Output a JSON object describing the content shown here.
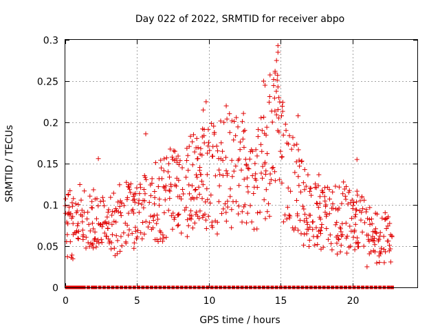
{
  "chart_data": {
    "type": "scatter",
    "title": "Day 022 of 2022, SRMTID for receiver abpo",
    "xlabel": "GPS time / hours",
    "ylabel": "SRMTID / TECUs",
    "xlim": [
      0,
      24.5
    ],
    "ylim": [
      0,
      0.3
    ],
    "x_ticks": [
      0,
      5,
      10,
      15,
      20
    ],
    "x_tick_labels": [
      "0",
      "5",
      "10",
      "15",
      "20"
    ],
    "y_ticks": [
      0,
      0.05,
      0.1,
      0.15,
      0.2,
      0.25,
      0.3
    ],
    "y_tick_labels": [
      "0",
      "0.05",
      "0.1",
      "0.15",
      "0.2",
      "0.25",
      "0.3"
    ],
    "grid": true,
    "marker": "plus",
    "color": "#e00000",
    "time_range": [
      0.0,
      22.75
    ],
    "trend": [
      {
        "x": 0.0,
        "y": 0.075
      },
      {
        "x": 1.0,
        "y": 0.08
      },
      {
        "x": 2.0,
        "y": 0.085
      },
      {
        "x": 3.0,
        "y": 0.075
      },
      {
        "x": 4.0,
        "y": 0.085
      },
      {
        "x": 5.0,
        "y": 0.09
      },
      {
        "x": 6.0,
        "y": 0.1
      },
      {
        "x": 7.0,
        "y": 0.11
      },
      {
        "x": 8.0,
        "y": 0.12
      },
      {
        "x": 9.0,
        "y": 0.125
      },
      {
        "x": 10.0,
        "y": 0.13
      },
      {
        "x": 11.0,
        "y": 0.14
      },
      {
        "x": 12.0,
        "y": 0.145
      },
      {
        "x": 13.0,
        "y": 0.13
      },
      {
        "x": 14.0,
        "y": 0.15
      },
      {
        "x": 14.5,
        "y": 0.2
      },
      {
        "x": 15.0,
        "y": 0.16
      },
      {
        "x": 16.0,
        "y": 0.12
      },
      {
        "x": 17.0,
        "y": 0.095
      },
      {
        "x": 18.0,
        "y": 0.085
      },
      {
        "x": 19.0,
        "y": 0.08
      },
      {
        "x": 20.0,
        "y": 0.085
      },
      {
        "x": 21.0,
        "y": 0.07
      },
      {
        "x": 22.0,
        "y": 0.055
      },
      {
        "x": 22.75,
        "y": 0.06
      }
    ],
    "highlights": [
      {
        "x": 14.8,
        "y": 0.293
      },
      {
        "x": 14.8,
        "y": 0.285
      },
      {
        "x": 14.7,
        "y": 0.275
      },
      {
        "x": 14.6,
        "y": 0.262
      },
      {
        "x": 14.5,
        "y": 0.252
      },
      {
        "x": 13.8,
        "y": 0.25
      },
      {
        "x": 13.9,
        "y": 0.245
      },
      {
        "x": 14.8,
        "y": 0.243
      },
      {
        "x": 9.8,
        "y": 0.225
      },
      {
        "x": 9.6,
        "y": 0.215
      },
      {
        "x": 11.2,
        "y": 0.22
      },
      {
        "x": 16.2,
        "y": 0.208
      },
      {
        "x": 5.6,
        "y": 0.186
      },
      {
        "x": 20.3,
        "y": 0.155
      },
      {
        "x": 2.3,
        "y": 0.156
      },
      {
        "x": 0.2,
        "y": 0.112
      },
      {
        "x": 21.0,
        "y": 0.025
      },
      {
        "x": 22.2,
        "y": 0.03
      }
    ],
    "zero_points": [
      0.1,
      0.3,
      0.5,
      0.7,
      0.9,
      1.1,
      1.3,
      1.6,
      1.9,
      2.1,
      2.4,
      2.7,
      3.0,
      3.3,
      3.6,
      3.9,
      4.2,
      4.5,
      4.8,
      5.1,
      5.4,
      5.7,
      6.0,
      6.3,
      6.6,
      6.9,
      7.2,
      7.5,
      7.8,
      8.1,
      8.4,
      8.7,
      9.0,
      9.3,
      9.6,
      9.9,
      10.2,
      10.5,
      10.8,
      11.1,
      11.4,
      11.7,
      12.0,
      12.3,
      12.6,
      12.9,
      13.2,
      13.5,
      13.8,
      14.1,
      14.4,
      14.7,
      15.0,
      15.3,
      15.6,
      15.9,
      16.2,
      16.5,
      16.8,
      17.1,
      17.4,
      17.7,
      18.0,
      18.3,
      18.6,
      18.9,
      19.2,
      19.5,
      19.8,
      20.1,
      20.4,
      20.7,
      21.0,
      21.3,
      21.6,
      21.9,
      22.2,
      22.5,
      22.75
    ]
  }
}
